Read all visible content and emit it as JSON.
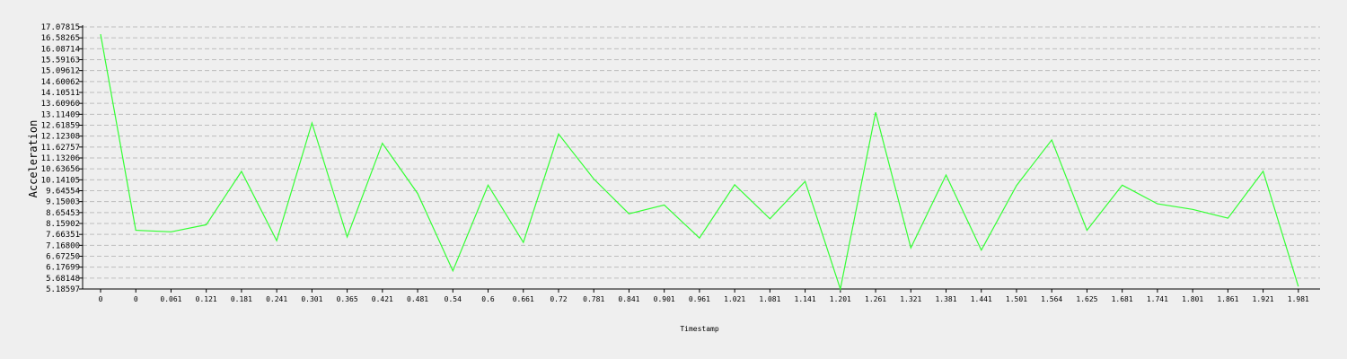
{
  "chart_data": {
    "type": "line",
    "xlabel": "Timestamp",
    "ylabel": "Acceleration",
    "x_tick_labels": [
      "0",
      "0",
      "0.061",
      "0.121",
      "0.181",
      "0.241",
      "0.301",
      "0.365",
      "0.421",
      "0.481",
      "0.54",
      "0.6",
      "0.661",
      "0.72",
      "0.781",
      "0.841",
      "0.901",
      "0.961",
      "1.021",
      "1.081",
      "1.141",
      "1.201",
      "1.261",
      "1.321",
      "1.381",
      "1.441",
      "1.501",
      "1.564",
      "1.625",
      "1.681",
      "1.741",
      "1.801",
      "1.861",
      "1.921",
      "1.981"
    ],
    "y_tick_labels": [
      "5.18597",
      "5.68148",
      "6.17699",
      "6.67250",
      "7.16800",
      "7.66351",
      "8.15902",
      "8.65453",
      "9.15003",
      "9.64554",
      "10.14105",
      "10.63656",
      "11.13206",
      "11.62757",
      "12.12308",
      "12.61859",
      "13.11409",
      "13.60960",
      "14.10511",
      "14.60062",
      "15.09612",
      "15.59163",
      "16.08714",
      "16.58265",
      "17.07815"
    ],
    "ylim": [
      5.18597,
      17.07815
    ],
    "grid": true,
    "series": [
      {
        "color": "#33ff33",
        "values": [
          16.75,
          7.85,
          7.78,
          8.1,
          10.52,
          7.38,
          12.72,
          7.55,
          11.8,
          9.52,
          6.01,
          9.9,
          7.3,
          12.22,
          10.18,
          8.6,
          9.0,
          7.5,
          9.92,
          8.37,
          10.07,
          5.18597,
          13.2,
          7.05,
          10.36,
          6.95,
          9.88,
          11.95,
          7.85,
          9.9,
          9.05,
          8.8,
          8.4,
          10.53,
          5.3
        ]
      }
    ]
  }
}
